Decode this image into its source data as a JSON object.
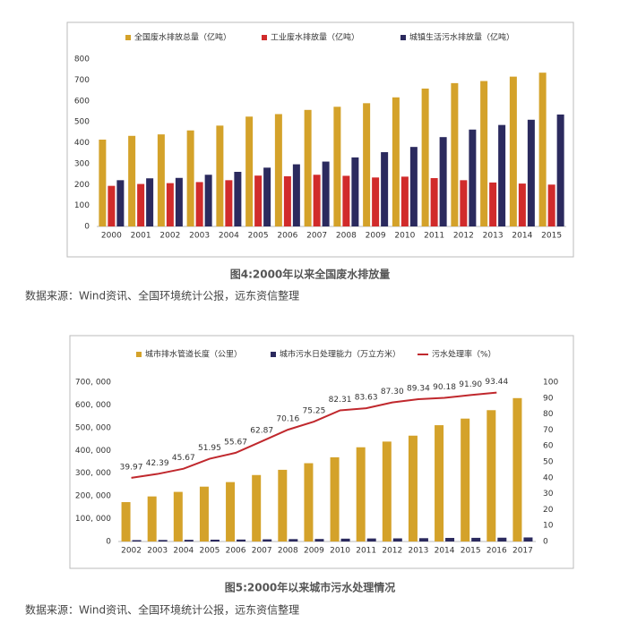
{
  "chart_data": [
    {
      "type": "bar",
      "caption": "图4:2000年以来全国废水排放量",
      "source": "数据来源：Wind资讯、全国环境统计公报，远东资信整理",
      "categories": [
        "2000",
        "2001",
        "2002",
        "2003",
        "2004",
        "2005",
        "2006",
        "2007",
        "2008",
        "2009",
        "2010",
        "2011",
        "2012",
        "2013",
        "2014",
        "2015"
      ],
      "series": [
        {
          "name": "全国废水排放总量（亿吨）",
          "color": "#d4a22a",
          "values": [
            415,
            433,
            440,
            459,
            482,
            525,
            537,
            557,
            572,
            589,
            617,
            659,
            685,
            695,
            716,
            735
          ]
        },
        {
          "name": "工业废水排放量（亿吨）",
          "color": "#d12b2b",
          "values": [
            194,
            203,
            207,
            212,
            221,
            243,
            240,
            247,
            242,
            234,
            238,
            231,
            221,
            210,
            205,
            200
          ]
        },
        {
          "name": "城镇生活污水排放量（亿吨）",
          "color": "#2b2a5e",
          "values": [
            221,
            230,
            232,
            247,
            261,
            281,
            297,
            310,
            330,
            355,
            380,
            427,
            463,
            485,
            510,
            535
          ]
        }
      ],
      "ylim": [
        0,
        800
      ],
      "yticks": [
        0,
        100,
        200,
        300,
        400,
        500,
        600,
        700,
        800
      ]
    },
    {
      "type": "combo",
      "caption": "图5:2000年以来城市污水处理情况",
      "source": "数据来源：Wind资讯、全国环境统计公报，远东资信整理",
      "categories": [
        "2002",
        "2003",
        "2004",
        "2005",
        "2006",
        "2007",
        "2008",
        "2009",
        "2010",
        "2011",
        "2012",
        "2013",
        "2014",
        "2015",
        "2016",
        "2017"
      ],
      "series": [
        {
          "name": "城市排水管道长度（公里）",
          "kind": "bar",
          "color": "#d4a22a",
          "values": [
            173000,
            198000,
            218000,
            241000,
            261000,
            292000,
            315000,
            344000,
            370000,
            414000,
            439000,
            465000,
            511000,
            540000,
            577000,
            630000
          ]
        },
        {
          "name": "城市污水日处理能力（万立方米）",
          "kind": "bar",
          "color": "#2b2a5e",
          "values": [
            6000,
            6600,
            7400,
            8000,
            8600,
            9500,
            10500,
            11000,
            12500,
            13300,
            13700,
            14600,
            15700,
            16100,
            16700,
            17800
          ]
        },
        {
          "name": "污水处理率（%）",
          "kind": "line",
          "axis": "y2",
          "color": "#c0282d",
          "values": [
            39.97,
            42.39,
            45.67,
            51.95,
            55.67,
            62.87,
            70.16,
            75.25,
            82.31,
            83.63,
            87.3,
            89.34,
            90.18,
            91.9,
            93.44,
            null
          ],
          "value_labels": [
            "39.97",
            "42.39",
            "45.67",
            "51.95",
            "55.67",
            "62.87",
            "70.16",
            "75.25",
            "82.31",
            "83.63",
            "87.30",
            "89.34",
            "90.18",
            "91.90",
            "93.44",
            null
          ]
        }
      ],
      "ylim": [
        0,
        700000
      ],
      "yticks": [
        0,
        {
          "value": 100000,
          "label": "100, 000"
        },
        {
          "value": 200000,
          "label": "200, 000"
        },
        {
          "value": 300000,
          "label": "300, 000"
        },
        {
          "value": 400000,
          "label": "400, 000"
        },
        {
          "value": 500000,
          "label": "500, 000"
        },
        {
          "value": 600000,
          "label": "600, 000"
        },
        {
          "value": 700000,
          "label": "700, 000"
        }
      ],
      "y2lim": [
        0,
        100
      ],
      "y2ticks": [
        0,
        10,
        20,
        30,
        40,
        50,
        60,
        70,
        80,
        90,
        100
      ]
    }
  ]
}
